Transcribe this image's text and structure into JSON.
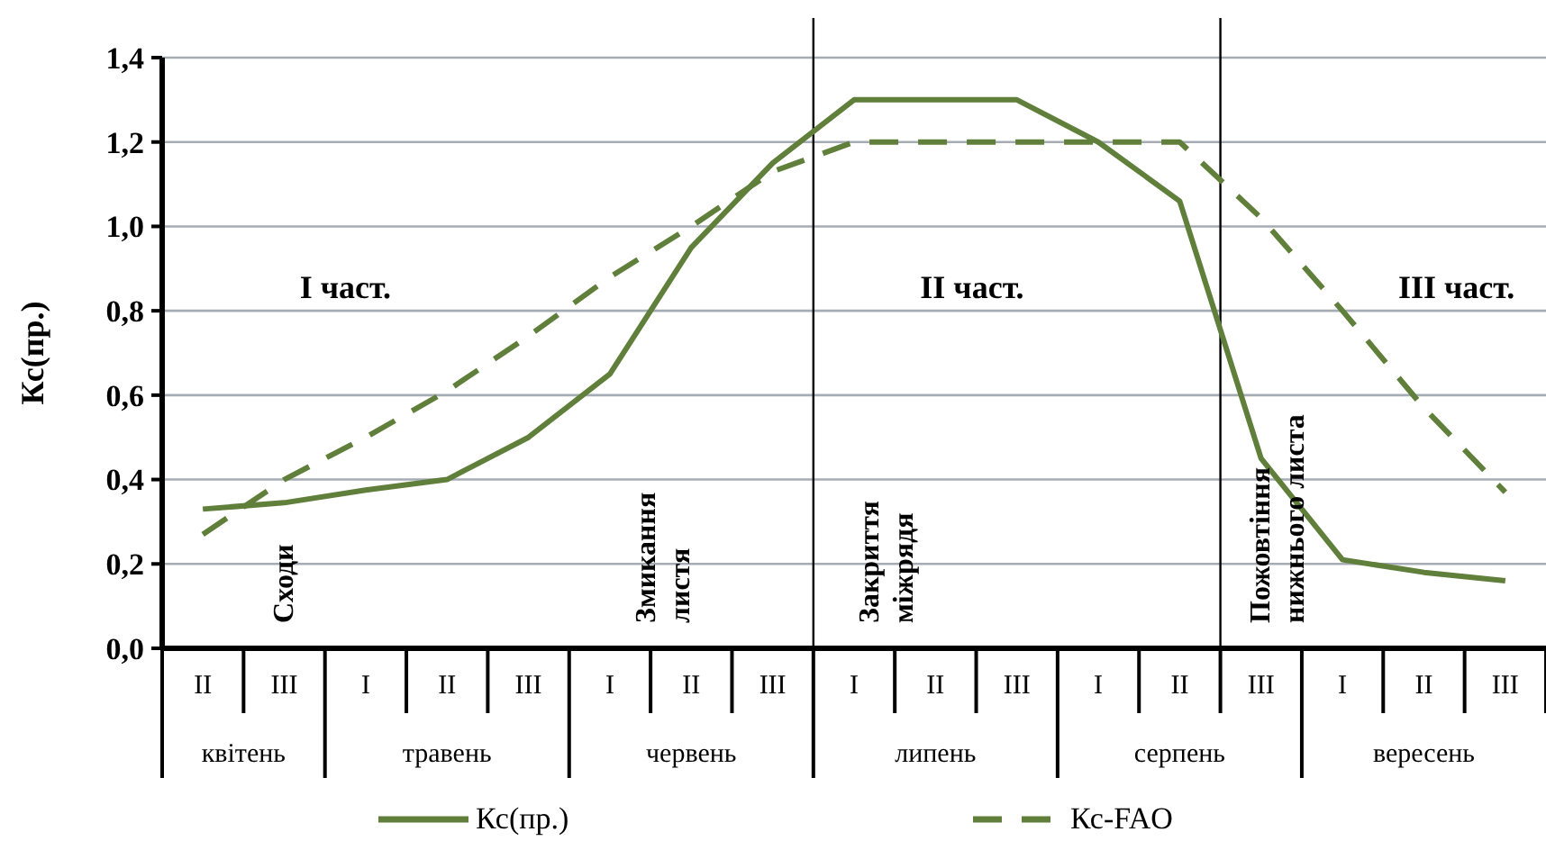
{
  "chart_data": {
    "type": "line",
    "ylabel": "Кс(пр.)",
    "categories": [
      "II",
      "III",
      "I",
      "II",
      "III",
      "I",
      "II",
      "III",
      "I",
      "II",
      "III",
      "I",
      "II",
      "III",
      "I",
      "II",
      "III"
    ],
    "series": [
      {
        "name": "Кс(пр.)",
        "color": "#5f7f3a",
        "line_style": "solid",
        "values": [
          0.33,
          0.345,
          0.375,
          0.4,
          0.5,
          0.65,
          0.95,
          1.15,
          1.3,
          1.3,
          1.3,
          1.2,
          1.06,
          0.45,
          0.21,
          0.18,
          0.16
        ]
      },
      {
        "name": "Кс-FAO",
        "color": "#5f7f3a",
        "line_style": "dashed",
        "values": [
          0.27,
          0.4,
          0.5,
          0.61,
          0.74,
          0.88,
          1.0,
          1.13,
          1.2,
          1.2,
          1.2,
          1.2,
          1.2,
          1.02,
          0.8,
          0.57,
          0.37
        ]
      }
    ],
    "ylim": [
      0,
      1.4
    ],
    "yticks": [
      {
        "value": 0,
        "label": "0,0"
      },
      {
        "value": 0.2,
        "label": "0,2"
      },
      {
        "value": 0.4,
        "label": "0,4"
      },
      {
        "value": 0.6,
        "label": "0,6"
      },
      {
        "value": 0.8,
        "label": "0,8"
      },
      {
        "value": 1,
        "label": "1,0"
      },
      {
        "value": 1.2,
        "label": "1,2"
      },
      {
        "value": 1.4,
        "label": "1,4"
      }
    ],
    "grid": "y",
    "legend": "bottom",
    "marker": "none",
    "annotations": [
      "I част.",
      "II част.",
      "III част.",
      "Сходи",
      "Змикання\nлистя",
      "Закриття\nміжрядя",
      "Пожовтіння\nнижнього листа",
      "квітень",
      "травень",
      "червень",
      "липень",
      "серпень",
      "вересень"
    ]
  }
}
